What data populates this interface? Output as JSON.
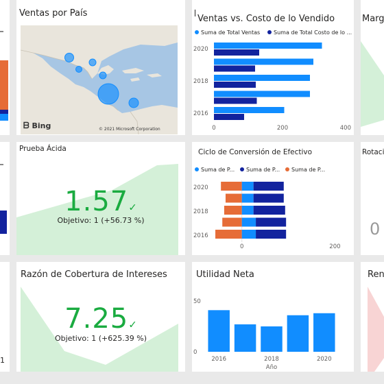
{
  "tiles": {
    "map": {
      "title": "Ventas por País",
      "bing_label": "Bing",
      "copyright": "© 2021 Microsoft Corporation"
    },
    "sales_vs_cost": {
      "title": "Ventas vs. Costo de lo Vendido",
      "legend": [
        "Suma de Total Ventas",
        "Suma de Total Costo de lo ..."
      ]
    },
    "margin": {
      "title": "Marge"
    },
    "acid_test": {
      "title": "Prueba Ácida",
      "value": "1.57",
      "goal": "Objetivo: 1 (+56.73 %)"
    },
    "cash_cycle": {
      "title": "Ciclo de Conversión de Efectivo",
      "legend": [
        "Suma de P...",
        "Suma de P...",
        "Suma de P..."
      ]
    },
    "rotation": {
      "title": "Rotació",
      "value": "0"
    },
    "interest_coverage": {
      "title": "Razón de Cobertura de Intereses",
      "value": "7.25",
      "goal": "Objetivo: 1 (+625.39 %)"
    },
    "net_income": {
      "title": "Utilidad Neta"
    },
    "return_tile": {
      "title": "Rend"
    },
    "left_edge": {
      "value": "1"
    }
  },
  "colors": {
    "blue": "#118dff",
    "dark_blue": "#12239e",
    "orange": "#e66c37",
    "green": "#1aab40",
    "pale_green": "#d4f0d8",
    "pale_red": "#f8d4d4"
  },
  "chart_data": [
    {
      "type": "bar",
      "title": "Ventas vs. Costo de lo Vendido",
      "orientation": "horizontal",
      "categories": [
        "2020",
        "2019",
        "2018",
        "2017",
        "2016"
      ],
      "y_ticks": [
        "2020",
        "2018",
        "2016"
      ],
      "x_ticks": [
        "0",
        "200",
        "400"
      ],
      "xlim": [
        0,
        400
      ],
      "series": [
        {
          "name": "Suma de Total Ventas",
          "values": [
            315,
            290,
            280,
            280,
            205
          ]
        },
        {
          "name": "Suma de Total Costo de lo ...",
          "values": [
            132,
            120,
            122,
            125,
            88
          ]
        }
      ]
    },
    {
      "type": "bar",
      "title": "Ciclo de Conversión de Efectivo",
      "orientation": "horizontal",
      "stacked": true,
      "categories": [
        "2020",
        "2019",
        "2018",
        "2017",
        "2016"
      ],
      "y_ticks": [
        "2020",
        "2018",
        "2016"
      ],
      "x_ticks": [
        "0",
        "200"
      ],
      "xlim": [
        -60,
        220
      ],
      "series": [
        {
          "name": "Suma de P...",
          "values": [
            -45,
            -35,
            -38,
            -42,
            -57
          ]
        },
        {
          "name": "Suma de P...",
          "values": [
            25,
            25,
            25,
            30,
            30
          ]
        },
        {
          "name": "Suma de P...",
          "values": [
            65,
            65,
            68,
            65,
            65
          ]
        }
      ]
    },
    {
      "type": "bar",
      "title": "Utilidad Neta",
      "categories": [
        "2016",
        "2017",
        "2018",
        "2019",
        "2020"
      ],
      "x_ticks": [
        "2016",
        "2018",
        "2020"
      ],
      "y_ticks": [
        "0",
        "50"
      ],
      "ylim": [
        0,
        50
      ],
      "xlabel": "Año",
      "values": [
        41,
        27,
        25,
        36,
        38
      ]
    }
  ]
}
